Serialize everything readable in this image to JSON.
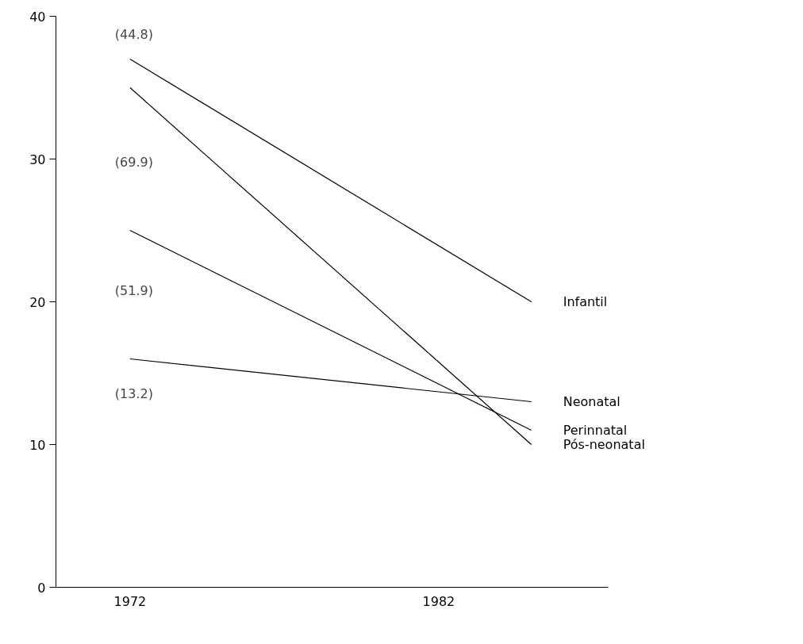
{
  "chart_data": {
    "type": "line",
    "x": [
      1972,
      1985
    ],
    "series": [
      {
        "name": "Infantil",
        "color": "#000000",
        "values": [
          37,
          20
        ]
      },
      {
        "name": "Neonatal",
        "color": "#000000",
        "values": [
          16,
          13
        ]
      },
      {
        "name": "Perinnatal",
        "color": "#000000",
        "values": [
          25,
          11
        ]
      },
      {
        "name": "Pós-neonatal",
        "color": "#000000",
        "values": [
          35,
          10
        ]
      }
    ],
    "annotations": [
      "(44.8)",
      "(69.9)",
      "(51.9)",
      "(13.2)"
    ],
    "xlim": [
      1969.6,
      1987.5
    ],
    "ylim": [
      0,
      40
    ],
    "xticks": [
      1972,
      1982
    ],
    "yticks": [
      0,
      10,
      20,
      30,
      40
    ],
    "grid": false,
    "legend": false,
    "marker": "none",
    "line_style": "solid"
  }
}
